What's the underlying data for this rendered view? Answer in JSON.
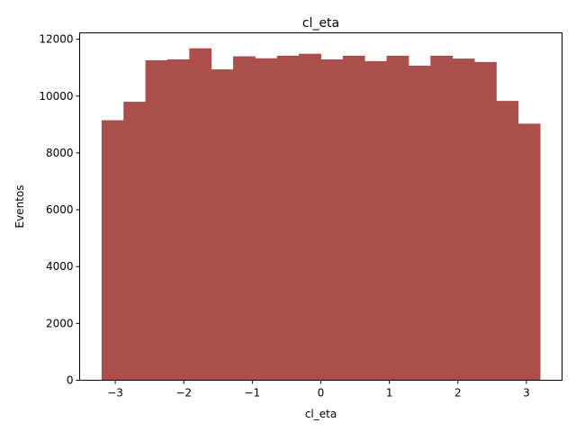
{
  "chart_data": {
    "type": "bar",
    "title": "cl_eta",
    "xlabel": "cl_eta",
    "ylabel": "Eventos",
    "bar_color": "#ab4f4d",
    "bins": {
      "start": -3.2,
      "width": 0.32,
      "count": 20
    },
    "values": [
      9150,
      9800,
      11260,
      11290,
      11680,
      10940,
      11400,
      11330,
      11420,
      11490,
      11290,
      11420,
      11230,
      11420,
      11070,
      11420,
      11320,
      11200,
      9830,
      9030
    ],
    "xlim": [
      -3.52,
      3.52
    ],
    "ylim": [
      0,
      12225
    ],
    "x_ticks": [
      {
        "value": -3,
        "label": "−3"
      },
      {
        "value": -2,
        "label": "−2"
      },
      {
        "value": -1,
        "label": "−1"
      },
      {
        "value": 0,
        "label": "0"
      },
      {
        "value": 1,
        "label": "1"
      },
      {
        "value": 2,
        "label": "2"
      },
      {
        "value": 3,
        "label": "3"
      }
    ],
    "y_ticks": [
      {
        "value": 0,
        "label": "0"
      },
      {
        "value": 2000,
        "label": "2000"
      },
      {
        "value": 4000,
        "label": "4000"
      },
      {
        "value": 6000,
        "label": "6000"
      },
      {
        "value": 8000,
        "label": "8000"
      },
      {
        "value": 10000,
        "label": "10000"
      },
      {
        "value": 12000,
        "label": "12000"
      }
    ],
    "grid": false,
    "legend": "none"
  }
}
